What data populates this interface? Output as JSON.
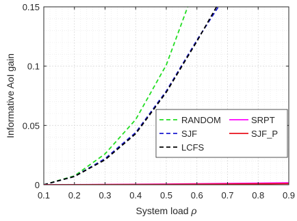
{
  "chart_data": {
    "type": "line",
    "xlabel": "System load",
    "xlabel_symbol": "ρ",
    "ylabel": "Informative AoI gain",
    "xlim": [
      0.1,
      0.9
    ],
    "ylim": [
      0,
      0.15
    ],
    "xticks": [
      "0.1",
      "0.2",
      "0.3",
      "0.4",
      "0.5",
      "0.6",
      "0.7",
      "0.8",
      "0.9"
    ],
    "yticks": [
      "0",
      "0.05",
      "0.1",
      "0.15"
    ],
    "grid": true,
    "legend_position": "right, inside axes",
    "series": [
      {
        "name": "RANDOM",
        "color": "#22dd22",
        "dash": "dashed",
        "x": [
          0.1,
          0.2,
          0.3,
          0.4,
          0.5,
          0.57
        ],
        "y": [
          0.0,
          0.0075,
          0.026,
          0.055,
          0.101,
          0.15
        ]
      },
      {
        "name": "SJF",
        "color": "#1a1ad0",
        "dash": "dashed",
        "x": [
          0.1,
          0.2,
          0.3,
          0.4,
          0.5,
          0.6,
          0.67
        ],
        "y": [
          0.0,
          0.007,
          0.022,
          0.044,
          0.079,
          0.122,
          0.15
        ]
      },
      {
        "name": "LCFS",
        "color": "#000000",
        "dash": "dashed",
        "x": [
          0.1,
          0.2,
          0.3,
          0.4,
          0.5,
          0.6,
          0.664
        ],
        "y": [
          0.0,
          0.007,
          0.021,
          0.043,
          0.078,
          0.121,
          0.15
        ]
      },
      {
        "name": "SRPT",
        "color": "#ff00ff",
        "dash": "solid",
        "x": [
          0.1,
          0.3,
          0.5,
          0.7,
          0.9
        ],
        "y": [
          0.0,
          0.0002,
          0.0006,
          0.0011,
          0.0016
        ]
      },
      {
        "name": "SJF_P",
        "color": "#e8101c",
        "dash": "solid",
        "x": [
          0.1,
          0.3,
          0.5,
          0.7,
          0.9
        ],
        "y": [
          0.0,
          0.0001,
          0.0003,
          0.0006,
          0.0009
        ]
      }
    ]
  }
}
